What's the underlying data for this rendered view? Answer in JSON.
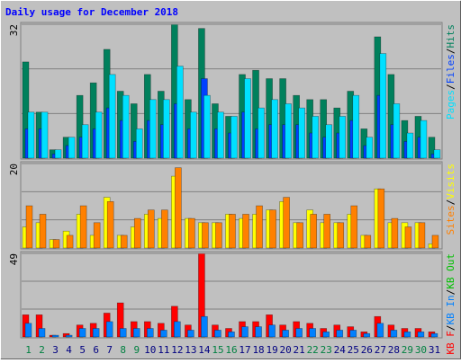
{
  "title": "Daily usage for December 2018",
  "label_separator": "/",
  "chart_data": [
    {
      "type": "bar",
      "ylim": [
        0,
        32
      ],
      "yticks": [
        32
      ],
      "legend_reversed": true,
      "series": [
        {
          "name": "Hits",
          "color": "#00805c",
          "values": [
            23,
            11,
            2,
            5,
            15,
            18,
            26,
            16,
            13,
            20,
            16,
            32,
            14,
            31,
            13,
            10,
            20,
            21,
            19,
            19,
            15,
            14,
            14,
            12,
            16,
            7,
            29,
            20,
            9,
            10,
            5
          ]
        },
        {
          "name": "Files",
          "color": "#0040ff",
          "values": [
            7,
            7,
            1,
            3,
            5,
            7,
            12,
            9,
            4,
            9,
            8,
            13,
            7,
            19,
            7,
            6,
            11,
            7,
            8,
            8,
            8,
            6,
            5,
            6,
            9,
            3,
            15,
            8,
            4,
            5,
            1
          ]
        },
        {
          "name": "Pages",
          "color": "#00e0ff",
          "values": [
            11,
            11,
            2,
            5,
            8,
            11,
            20,
            15,
            7,
            14,
            14,
            22,
            11,
            15,
            11,
            10,
            19,
            12,
            14,
            13,
            12,
            10,
            8,
            10,
            15,
            5,
            25,
            13,
            6,
            9,
            2
          ]
        }
      ]
    },
    {
      "type": "bar",
      "ylim": [
        0,
        20
      ],
      "yticks": [
        20
      ],
      "legend_reversed": true,
      "series": [
        {
          "name": "Visits",
          "color": "#ffff00",
          "values": [
            5,
            6,
            2,
            4,
            8,
            3,
            12,
            3,
            5,
            8,
            7,
            17,
            7,
            6,
            6,
            8,
            7,
            8,
            9,
            11,
            6,
            9,
            6,
            6,
            8,
            3,
            14,
            6,
            6,
            6,
            1
          ]
        },
        {
          "name": "Sites",
          "color": "#ff8000",
          "values": [
            10,
            8,
            2,
            3,
            10,
            6,
            11,
            3,
            7,
            9,
            9,
            19,
            7,
            6,
            6,
            8,
            8,
            10,
            9,
            12,
            6,
            8,
            8,
            6,
            10,
            3,
            14,
            7,
            5,
            6,
            3
          ]
        }
      ]
    },
    {
      "type": "bar",
      "ylim": [
        0,
        49
      ],
      "yticks": [
        49
      ],
      "legend_reversed": false,
      "categories": [
        "1",
        "2",
        "3",
        "4",
        "5",
        "6",
        "7",
        "8",
        "9",
        "10",
        "11",
        "12",
        "13",
        "14",
        "15",
        "16",
        "17",
        "18",
        "19",
        "20",
        "21",
        "22",
        "23",
        "24",
        "25",
        "26",
        "27",
        "28",
        "29",
        "30",
        "31"
      ],
      "category_colors": [
        "#008040",
        "#008040",
        "#000080",
        "#000080",
        "#000080",
        "#000080",
        "#000080",
        "#008040",
        "#008040",
        "#000080",
        "#000080",
        "#000080",
        "#000080",
        "#000080",
        "#008040",
        "#008040",
        "#000080",
        "#000080",
        "#000080",
        "#000080",
        "#000080",
        "#008040",
        "#008040",
        "#000080",
        "#000080",
        "#000080",
        "#000080",
        "#000080",
        "#008040",
        "#008040",
        "#000080"
      ],
      "series": [
        {
          "name": "KB F",
          "color": "#ff0000",
          "values": [
            13,
            13,
            1,
            2,
            7,
            8,
            14,
            20,
            9,
            9,
            8,
            18,
            7,
            49,
            7,
            5,
            9,
            9,
            13,
            7,
            9,
            8,
            5,
            7,
            6,
            3,
            12,
            7,
            5,
            5,
            3
          ]
        },
        {
          "name": "KB In",
          "color": "#0080ff",
          "values": [
            8,
            5,
            1,
            1,
            5,
            5,
            9,
            5,
            5,
            5,
            4,
            9,
            4,
            12,
            4,
            3,
            6,
            6,
            7,
            4,
            5,
            5,
            3,
            4,
            4,
            2,
            8,
            4,
            3,
            3,
            2
          ]
        },
        {
          "name": "KB Out",
          "color": "#00c000",
          "values": [
            0,
            0,
            0,
            0,
            0,
            0,
            0,
            0,
            0,
            0,
            0,
            0,
            0,
            0,
            0,
            0,
            0,
            0,
            0,
            0,
            0,
            0,
            0,
            0,
            0,
            0,
            0,
            0,
            0,
            0,
            0
          ]
        }
      ]
    }
  ]
}
